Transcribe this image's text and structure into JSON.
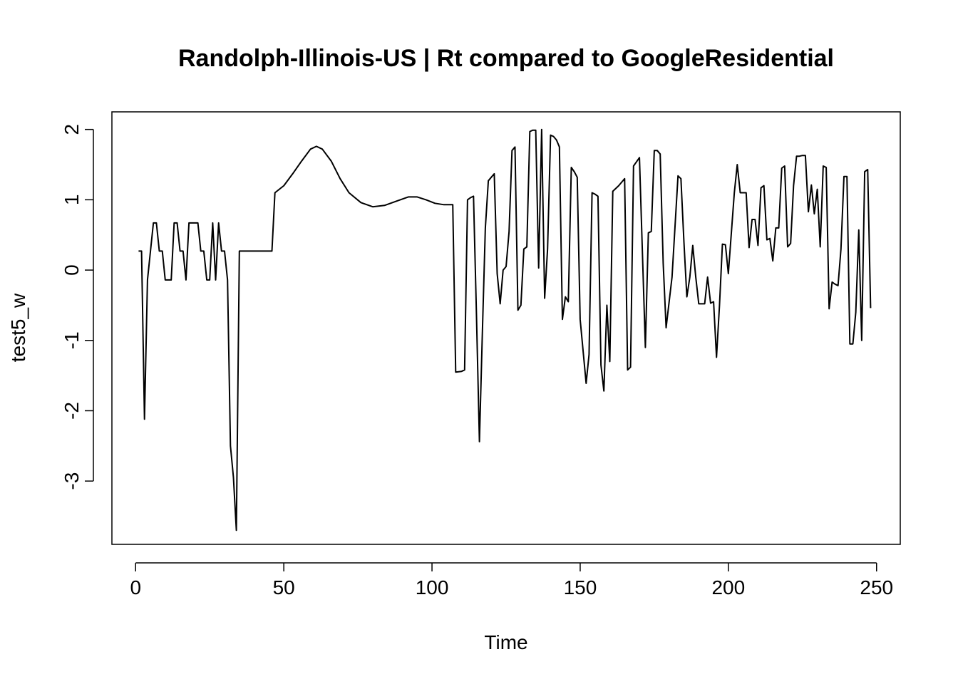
{
  "chart_data": {
    "type": "line",
    "title": "Randolph-Illinois-US | Rt compared to GoogleResidential",
    "xlabel": "Time",
    "ylabel": "test5_w",
    "xlim": [
      -8,
      258
    ],
    "ylim": [
      -3.9,
      2.25
    ],
    "xticks": [
      0,
      50,
      100,
      150,
      200,
      250
    ],
    "yticks": [
      -3,
      -2,
      -1,
      0,
      1,
      2
    ],
    "grid": false,
    "series": [
      {
        "points": [
          [
            1,
            0.27
          ],
          [
            2,
            0.27
          ],
          [
            3,
            -2.12
          ],
          [
            4,
            -0.14
          ],
          [
            5,
            0.27
          ],
          [
            6,
            0.67
          ],
          [
            7,
            0.67
          ],
          [
            8,
            0.27
          ],
          [
            9,
            0.27
          ],
          [
            10,
            -0.14
          ],
          [
            11,
            -0.14
          ],
          [
            12,
            -0.14
          ],
          [
            13,
            0.67
          ],
          [
            14,
            0.67
          ],
          [
            15,
            0.27
          ],
          [
            16,
            0.27
          ],
          [
            17,
            -0.14
          ],
          [
            18,
            0.67
          ],
          [
            19,
            0.67
          ],
          [
            20,
            0.67
          ],
          [
            21,
            0.67
          ],
          [
            22,
            0.27
          ],
          [
            23,
            0.27
          ],
          [
            24,
            -0.14
          ],
          [
            25,
            -0.14
          ],
          [
            26,
            0.67
          ],
          [
            27,
            -0.14
          ],
          [
            28,
            0.67
          ],
          [
            29,
            0.27
          ],
          [
            30,
            0.27
          ],
          [
            31,
            -0.14
          ],
          [
            32,
            -2.5
          ],
          [
            33,
            -2.95
          ],
          [
            34,
            -3.7
          ],
          [
            35,
            0.27
          ],
          [
            37,
            0.27
          ],
          [
            40,
            0.27
          ],
          [
            43,
            0.27
          ],
          [
            46,
            0.27
          ],
          [
            47,
            1.1
          ],
          [
            50,
            1.2
          ],
          [
            53,
            1.37
          ],
          [
            56,
            1.55
          ],
          [
            59,
            1.72
          ],
          [
            61,
            1.76
          ],
          [
            63,
            1.72
          ],
          [
            66,
            1.55
          ],
          [
            69,
            1.3
          ],
          [
            72,
            1.1
          ],
          [
            76,
            0.96
          ],
          [
            80,
            0.9
          ],
          [
            84,
            0.92
          ],
          [
            88,
            0.98
          ],
          [
            92,
            1.04
          ],
          [
            95,
            1.04
          ],
          [
            98,
            1.0
          ],
          [
            101,
            0.95
          ],
          [
            104,
            0.93
          ],
          [
            107,
            0.93
          ],
          [
            108,
            -1.45
          ],
          [
            110,
            -1.44
          ],
          [
            111,
            -1.42
          ],
          [
            112,
            1.0
          ],
          [
            113,
            1.03
          ],
          [
            114,
            1.05
          ],
          [
            115,
            -0.62
          ],
          [
            116,
            -2.44
          ],
          [
            117,
            -0.9
          ],
          [
            118,
            0.6
          ],
          [
            119,
            1.27
          ],
          [
            120,
            1.32
          ],
          [
            121,
            1.37
          ],
          [
            122,
            -0.05
          ],
          [
            123,
            -0.48
          ],
          [
            124,
            0.0
          ],
          [
            125,
            0.05
          ],
          [
            126,
            0.55
          ],
          [
            127,
            1.7
          ],
          [
            128,
            1.75
          ],
          [
            129,
            -0.57
          ],
          [
            130,
            -0.5
          ],
          [
            131,
            0.3
          ],
          [
            132,
            0.33
          ],
          [
            133,
            1.97
          ],
          [
            134,
            1.99
          ],
          [
            135,
            1.99
          ],
          [
            136,
            0.03
          ],
          [
            137,
            2.0
          ],
          [
            138,
            -0.4
          ],
          [
            139,
            0.3
          ],
          [
            140,
            1.92
          ],
          [
            141,
            1.9
          ],
          [
            142,
            1.85
          ],
          [
            143,
            1.75
          ],
          [
            144,
            -0.7
          ],
          [
            145,
            -0.38
          ],
          [
            146,
            -0.45
          ],
          [
            147,
            1.46
          ],
          [
            148,
            1.4
          ],
          [
            149,
            1.32
          ],
          [
            150,
            -0.7
          ],
          [
            152,
            -1.61
          ],
          [
            153,
            -1.2
          ],
          [
            154,
            1.1
          ],
          [
            155,
            1.08
          ],
          [
            156,
            1.05
          ],
          [
            157,
            -1.35
          ],
          [
            158,
            -1.72
          ],
          [
            159,
            -0.5
          ],
          [
            160,
            -1.3
          ],
          [
            161,
            1.12
          ],
          [
            163,
            1.2
          ],
          [
            165,
            1.3
          ],
          [
            166,
            -1.42
          ],
          [
            167,
            -1.38
          ],
          [
            168,
            1.48
          ],
          [
            170,
            1.6
          ],
          [
            172,
            -1.1
          ],
          [
            173,
            0.53
          ],
          [
            174,
            0.55
          ],
          [
            175,
            1.7
          ],
          [
            176,
            1.7
          ],
          [
            177,
            1.65
          ],
          [
            178,
            0.1
          ],
          [
            179,
            -0.82
          ],
          [
            181,
            -0.1
          ],
          [
            183,
            1.34
          ],
          [
            184,
            1.3
          ],
          [
            185,
            0.4
          ],
          [
            186,
            -0.38
          ],
          [
            187,
            -0.1
          ],
          [
            188,
            0.35
          ],
          [
            189,
            -0.1
          ],
          [
            190,
            -0.48
          ],
          [
            192,
            -0.48
          ],
          [
            193,
            -0.1
          ],
          [
            194,
            -0.47
          ],
          [
            195,
            -0.45
          ],
          [
            196,
            -1.24
          ],
          [
            197,
            -0.5
          ],
          [
            198,
            0.37
          ],
          [
            199,
            0.36
          ],
          [
            200,
            -0.05
          ],
          [
            202,
            1.1
          ],
          [
            203,
            1.5
          ],
          [
            204,
            1.1
          ],
          [
            206,
            1.1
          ],
          [
            207,
            0.32
          ],
          [
            208,
            0.72
          ],
          [
            209,
            0.72
          ],
          [
            210,
            0.35
          ],
          [
            211,
            1.17
          ],
          [
            212,
            1.2
          ],
          [
            213,
            0.43
          ],
          [
            214,
            0.45
          ],
          [
            215,
            0.13
          ],
          [
            216,
            0.6
          ],
          [
            217,
            0.6
          ],
          [
            218,
            1.45
          ],
          [
            219,
            1.48
          ],
          [
            220,
            0.33
          ],
          [
            221,
            0.38
          ],
          [
            222,
            1.2
          ],
          [
            223,
            1.62
          ],
          [
            224,
            1.62
          ],
          [
            225,
            1.63
          ],
          [
            226,
            1.63
          ],
          [
            227,
            0.83
          ],
          [
            228,
            1.21
          ],
          [
            229,
            0.8
          ],
          [
            230,
            1.15
          ],
          [
            231,
            0.33
          ],
          [
            232,
            1.48
          ],
          [
            233,
            1.46
          ],
          [
            234,
            -0.55
          ],
          [
            235,
            -0.17
          ],
          [
            236,
            -0.2
          ],
          [
            237,
            -0.22
          ],
          [
            238,
            0.3
          ],
          [
            239,
            1.33
          ],
          [
            240,
            1.33
          ],
          [
            241,
            -1.05
          ],
          [
            242,
            -1.05
          ],
          [
            243,
            -0.6
          ],
          [
            244,
            0.57
          ],
          [
            245,
            -1.0
          ],
          [
            246,
            1.4
          ],
          [
            247,
            1.43
          ],
          [
            248,
            -0.54
          ]
        ]
      }
    ]
  }
}
